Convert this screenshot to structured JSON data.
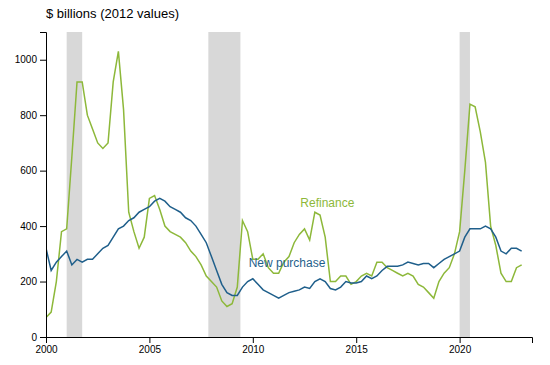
{
  "chart_data": {
    "type": "line",
    "title": "$ billions (2012 values)",
    "x": [
      2000.0,
      2000.25,
      2000.5,
      2000.75,
      2001.0,
      2001.25,
      2001.5,
      2001.75,
      2002.0,
      2002.25,
      2002.5,
      2002.75,
      2003.0,
      2003.25,
      2003.5,
      2003.75,
      2004.0,
      2004.25,
      2004.5,
      2004.75,
      2005.0,
      2005.25,
      2005.5,
      2005.75,
      2006.0,
      2006.25,
      2006.5,
      2006.75,
      2007.0,
      2007.25,
      2007.5,
      2007.75,
      2008.0,
      2008.25,
      2008.5,
      2008.75,
      2009.0,
      2009.25,
      2009.5,
      2009.75,
      2010.0,
      2010.25,
      2010.5,
      2010.75,
      2011.0,
      2011.25,
      2011.5,
      2011.75,
      2012.0,
      2012.25,
      2012.5,
      2012.75,
      2013.0,
      2013.25,
      2013.5,
      2013.75,
      2014.0,
      2014.25,
      2014.5,
      2014.75,
      2015.0,
      2015.25,
      2015.5,
      2015.75,
      2016.0,
      2016.25,
      2016.5,
      2016.75,
      2017.0,
      2017.25,
      2017.5,
      2017.75,
      2018.0,
      2018.25,
      2018.5,
      2018.75,
      2019.0,
      2019.25,
      2019.5,
      2019.75,
      2020.0,
      2020.25,
      2020.5,
      2020.75,
      2021.0,
      2021.25,
      2021.5,
      2021.75,
      2022.0,
      2022.25,
      2022.5,
      2022.75,
      2023.0
    ],
    "series": [
      {
        "color": "#8db83a",
        "values": [
          70,
          90,
          200,
          380,
          390,
          650,
          920,
          920,
          800,
          750,
          700,
          680,
          700,
          920,
          1030,
          820,
          450,
          380,
          320,
          360,
          500,
          510,
          460,
          400,
          380,
          370,
          360,
          340,
          310,
          290,
          260,
          220,
          200,
          180,
          130,
          110,
          120,
          180,
          420,
          380,
          280,
          280,
          300,
          250,
          230,
          230,
          270,
          290,
          340,
          370,
          390,
          350,
          450,
          440,
          360,
          200,
          200,
          220,
          220,
          190,
          200,
          220,
          230,
          220,
          270,
          270,
          250,
          240,
          230,
          220,
          230,
          220,
          190,
          180,
          160,
          140,
          200,
          230,
          250,
          300,
          380,
          600,
          840,
          830,
          740,
          630,
          400,
          330,
          230,
          200,
          200,
          250,
          260
        ]
      },
      {
        "color": "#1f5f8b",
        "values": [
          320,
          240,
          270,
          290,
          310,
          260,
          280,
          270,
          280,
          280,
          300,
          320,
          330,
          360,
          390,
          400,
          420,
          430,
          450,
          460,
          470,
          490,
          500,
          490,
          470,
          460,
          450,
          430,
          420,
          400,
          370,
          340,
          290,
          240,
          190,
          160,
          150,
          150,
          180,
          200,
          210,
          190,
          170,
          160,
          150,
          140,
          150,
          160,
          165,
          170,
          180,
          175,
          200,
          210,
          200,
          175,
          170,
          180,
          200,
          195,
          195,
          200,
          220,
          210,
          220,
          240,
          255,
          255,
          255,
          260,
          270,
          265,
          260,
          265,
          265,
          250,
          265,
          280,
          290,
          300,
          310,
          360,
          390,
          390,
          390,
          400,
          390,
          360,
          310,
          300,
          320,
          320,
          310
        ]
      }
    ],
    "annotations": [
      {
        "text": "Refinance",
        "x": 2012.3,
        "y": 480,
        "color": "#8db83a"
      },
      {
        "text": "New purchase",
        "x": 2009.8,
        "y": 265,
        "color": "#1f5f8b"
      }
    ],
    "recession_bands": [
      [
        2001.0,
        2001.75
      ],
      [
        2007.85,
        2009.4
      ],
      [
        2020.0,
        2020.5
      ]
    ],
    "recession_color": "#c8c8c8",
    "xlim": [
      2000,
      2023.5
    ],
    "xticks": [
      2000,
      2005,
      2010,
      2015,
      2020
    ],
    "ylim": [
      0,
      1100
    ],
    "yticks": [
      0,
      200,
      400,
      600,
      800,
      1000
    ],
    "grid": false
  }
}
